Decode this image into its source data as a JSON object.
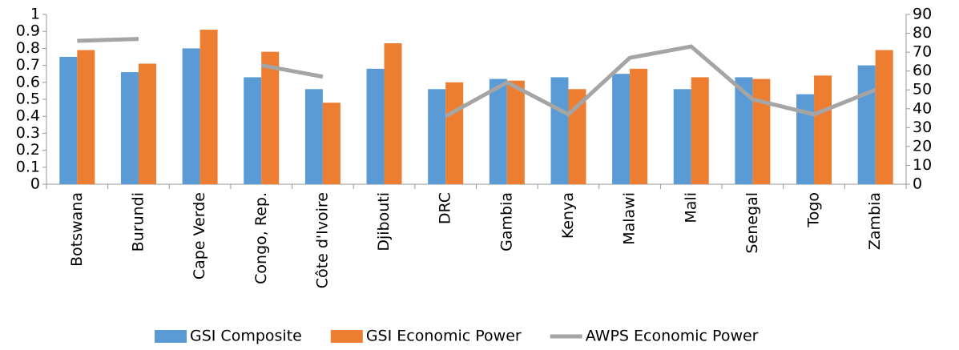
{
  "chart_data": {
    "type": "bar",
    "categories": [
      "Botswana",
      "Burundi",
      "Cape Verde",
      "Congo, Rep.",
      "Côte d'Ivoire",
      "Djibouti",
      "DRC",
      "Gambia",
      "Kenya",
      "Malawi",
      "Mali",
      "Senegal",
      "Togo",
      "Zambia"
    ],
    "series": [
      {
        "name": "GSI Composite",
        "color": "#5b9bd5",
        "type": "bar",
        "values": [
          0.75,
          0.66,
          0.8,
          0.63,
          0.56,
          0.68,
          0.56,
          0.62,
          0.63,
          0.65,
          0.56,
          0.63,
          0.53,
          0.7
        ]
      },
      {
        "name": "GSI Economic Power",
        "color": "#ed7d31",
        "type": "bar",
        "values": [
          0.79,
          0.71,
          0.91,
          0.78,
          0.48,
          0.83,
          0.6,
          0.61,
          0.56,
          0.68,
          0.63,
          0.62,
          0.64,
          0.79
        ]
      },
      {
        "name": "AWPS Economic Power",
        "color": "#a5a5a5",
        "type": "line",
        "axis": "y2",
        "values": [
          76,
          77,
          null,
          63,
          57,
          null,
          36,
          54,
          37,
          67,
          73,
          45,
          37,
          50
        ]
      }
    ],
    "ylim": [
      0,
      1
    ],
    "yticks": [
      0,
      0.1,
      0.2,
      0.3,
      0.4,
      0.5,
      0.6,
      0.7,
      0.8,
      0.9,
      1
    ],
    "y2lim": [
      0,
      90
    ],
    "y2ticks": [
      0,
      10,
      20,
      30,
      40,
      50,
      60,
      70,
      80,
      90
    ],
    "legend": "bottom"
  }
}
